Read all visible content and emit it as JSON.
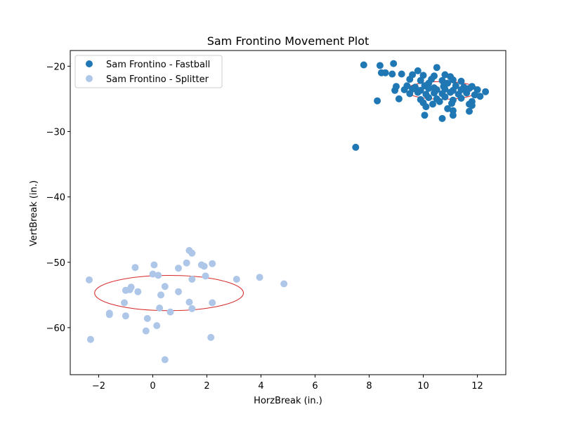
{
  "chart_data": {
    "type": "scatter",
    "title": "Sam Frontino Movement Plot",
    "xlabel": "HorzBreak (in.)",
    "ylabel": "VertBreak (in.)",
    "xlim": [
      -3.05,
      13.05
    ],
    "ylim": [
      -67.2,
      -17.6
    ],
    "xticks": [
      -2,
      0,
      2,
      4,
      6,
      8,
      10,
      12
    ],
    "yticks": [
      -20,
      -30,
      -40,
      -50,
      -60
    ],
    "xtick_labels": [
      "−2",
      "0",
      "2",
      "4",
      "6",
      "8",
      "10",
      "12"
    ],
    "ytick_labels": [
      "−20",
      "−30",
      "−40",
      "−50",
      "−60"
    ],
    "grid": false,
    "legend_position": "top-left",
    "series": [
      {
        "name": "Sam Frontino - Fastball",
        "color": "#1f77b4",
        "points": [
          [
            7.8,
            -19.8
          ],
          [
            8.4,
            -19.9
          ],
          [
            8.9,
            -19.6
          ],
          [
            9.8,
            -20.7
          ],
          [
            10.5,
            -20.2
          ],
          [
            8.45,
            -21.0
          ],
          [
            8.6,
            -21.0
          ],
          [
            8.85,
            -21.2
          ],
          [
            9.2,
            -21.2
          ],
          [
            9.6,
            -21.3
          ],
          [
            10.0,
            -21.4
          ],
          [
            10.4,
            -21.5
          ],
          [
            10.8,
            -21.3
          ],
          [
            11.0,
            -21.6
          ],
          [
            9.5,
            -22.0
          ],
          [
            9.9,
            -22.2
          ],
          [
            10.3,
            -22.0
          ],
          [
            10.7,
            -22.2
          ],
          [
            11.1,
            -22.1
          ],
          [
            11.4,
            -22.3
          ],
          [
            10.2,
            -22.6
          ],
          [
            10.9,
            -22.6
          ],
          [
            9.0,
            -23.1
          ],
          [
            9.4,
            -23.0
          ],
          [
            9.7,
            -23.2
          ],
          [
            10.05,
            -23.0
          ],
          [
            10.4,
            -23.3
          ],
          [
            10.75,
            -23.1
          ],
          [
            11.2,
            -23.0
          ],
          [
            11.5,
            -23.2
          ],
          [
            11.8,
            -23.1
          ],
          [
            8.95,
            -23.7
          ],
          [
            9.3,
            -23.6
          ],
          [
            9.6,
            -23.5
          ],
          [
            9.9,
            -23.7
          ],
          [
            10.2,
            -23.4
          ],
          [
            10.5,
            -23.6
          ],
          [
            10.8,
            -23.5
          ],
          [
            11.1,
            -23.7
          ],
          [
            11.4,
            -23.6
          ],
          [
            11.7,
            -23.4
          ],
          [
            12.0,
            -23.6
          ],
          [
            12.3,
            -23.9
          ],
          [
            9.5,
            -24.2
          ],
          [
            9.8,
            -24.0
          ],
          [
            10.1,
            -24.3
          ],
          [
            10.4,
            -24.1
          ],
          [
            10.7,
            -24.2
          ],
          [
            11.0,
            -24.0
          ],
          [
            11.3,
            -24.3
          ],
          [
            11.6,
            -24.1
          ],
          [
            11.9,
            -24.4
          ],
          [
            12.1,
            -24.6
          ],
          [
            9.1,
            -25.0
          ],
          [
            9.9,
            -25.1
          ],
          [
            10.2,
            -24.8
          ],
          [
            10.5,
            -25.0
          ],
          [
            10.8,
            -24.7
          ],
          [
            11.1,
            -25.2
          ],
          [
            11.4,
            -24.9
          ],
          [
            11.8,
            -25.4
          ],
          [
            8.3,
            -25.3
          ],
          [
            10.0,
            -25.6
          ],
          [
            10.35,
            -25.8
          ],
          [
            10.6,
            -25.4
          ],
          [
            11.05,
            -25.7
          ],
          [
            11.7,
            -25.8
          ],
          [
            10.1,
            -26.2
          ],
          [
            10.9,
            -26.5
          ],
          [
            11.8,
            -26.0
          ],
          [
            11.1,
            -26.8
          ],
          [
            11.7,
            -26.9
          ],
          [
            10.05,
            -27.5
          ],
          [
            11.1,
            -27.5
          ],
          [
            10.7,
            -28.0
          ],
          [
            7.5,
            -32.4
          ]
        ]
      },
      {
        "name": "Sam Frontino - Splitter",
        "color": "#aec7e8",
        "points": [
          [
            1.35,
            -48.2
          ],
          [
            1.45,
            -48.6
          ],
          [
            -0.65,
            -50.8
          ],
          [
            0.05,
            -50.4
          ],
          [
            0.95,
            -50.9
          ],
          [
            1.25,
            -50.1
          ],
          [
            1.8,
            -50.4
          ],
          [
            1.9,
            -50.6
          ],
          [
            2.2,
            -50.2
          ],
          [
            0.0,
            -51.8
          ],
          [
            0.2,
            -52.0
          ],
          [
            1.95,
            -52.1
          ],
          [
            -2.35,
            -52.7
          ],
          [
            1.45,
            -52.6
          ],
          [
            3.1,
            -52.6
          ],
          [
            3.95,
            -52.3
          ],
          [
            4.85,
            -53.3
          ],
          [
            -0.8,
            -53.8
          ],
          [
            -1.0,
            -54.3
          ],
          [
            -0.85,
            -54.2
          ],
          [
            -0.55,
            -54.5
          ],
          [
            0.45,
            -53.7
          ],
          [
            0.95,
            -54.5
          ],
          [
            0.3,
            -55.0
          ],
          [
            -1.05,
            -56.2
          ],
          [
            1.35,
            -56.1
          ],
          [
            2.2,
            -56.2
          ],
          [
            0.25,
            -57.0
          ],
          [
            1.45,
            -57.1
          ],
          [
            0.65,
            -57.6
          ],
          [
            -1.6,
            -57.8
          ],
          [
            -1.6,
            -58.0
          ],
          [
            -1.0,
            -58.2
          ],
          [
            -0.2,
            -58.6
          ],
          [
            0.15,
            -59.7
          ],
          [
            -0.25,
            -60.5
          ],
          [
            2.15,
            -61.5
          ],
          [
            -2.3,
            -61.8
          ],
          [
            0.45,
            -64.9
          ]
        ]
      }
    ],
    "ellipses": [
      {
        "series": "Sam Frontino - Fastball",
        "color": "#d62728",
        "cx": 10.7,
        "cy": -23.7,
        "rx": 1.35,
        "ry": 1.35
      },
      {
        "series": "Sam Frontino - Splitter",
        "color": "#d62728",
        "cx": 0.6,
        "cy": -54.7,
        "rx": 2.75,
        "ry": 2.7
      }
    ]
  }
}
